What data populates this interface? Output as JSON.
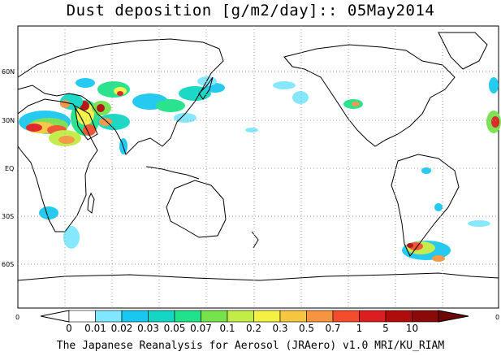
{
  "title": "Dust deposition [g/m2/day]:: 05May2014",
  "credit": "The Japanese Reanalysis for Aerosol (JRAero) v1.0 MRI/KU_RIAM",
  "latitude_labels": [
    "60N",
    "30N",
    "EQ",
    "30S",
    "60S"
  ],
  "colorbar": {
    "edge_left": "0",
    "edge_right": "0",
    "labels": [
      "0",
      "0.01",
      "0.02",
      "0.03",
      "0.05",
      "0.07",
      "0.1",
      "0.2",
      "0.3",
      "0.5",
      "0.7",
      "1",
      "5",
      "10"
    ],
    "colors": [
      "#ffffff",
      "#ffffff",
      "#7fe7ff",
      "#19c8f0",
      "#13d6c4",
      "#20e28a",
      "#76e24c",
      "#c2ec46",
      "#f4f044",
      "#f6c640",
      "#f69440",
      "#f24e2e",
      "#dc1e1e",
      "#b00c0c",
      "#8a0a0a",
      "#6e0808"
    ]
  },
  "map_colors": {
    "coast": "#000000",
    "grid": "#a0a0a0"
  }
}
